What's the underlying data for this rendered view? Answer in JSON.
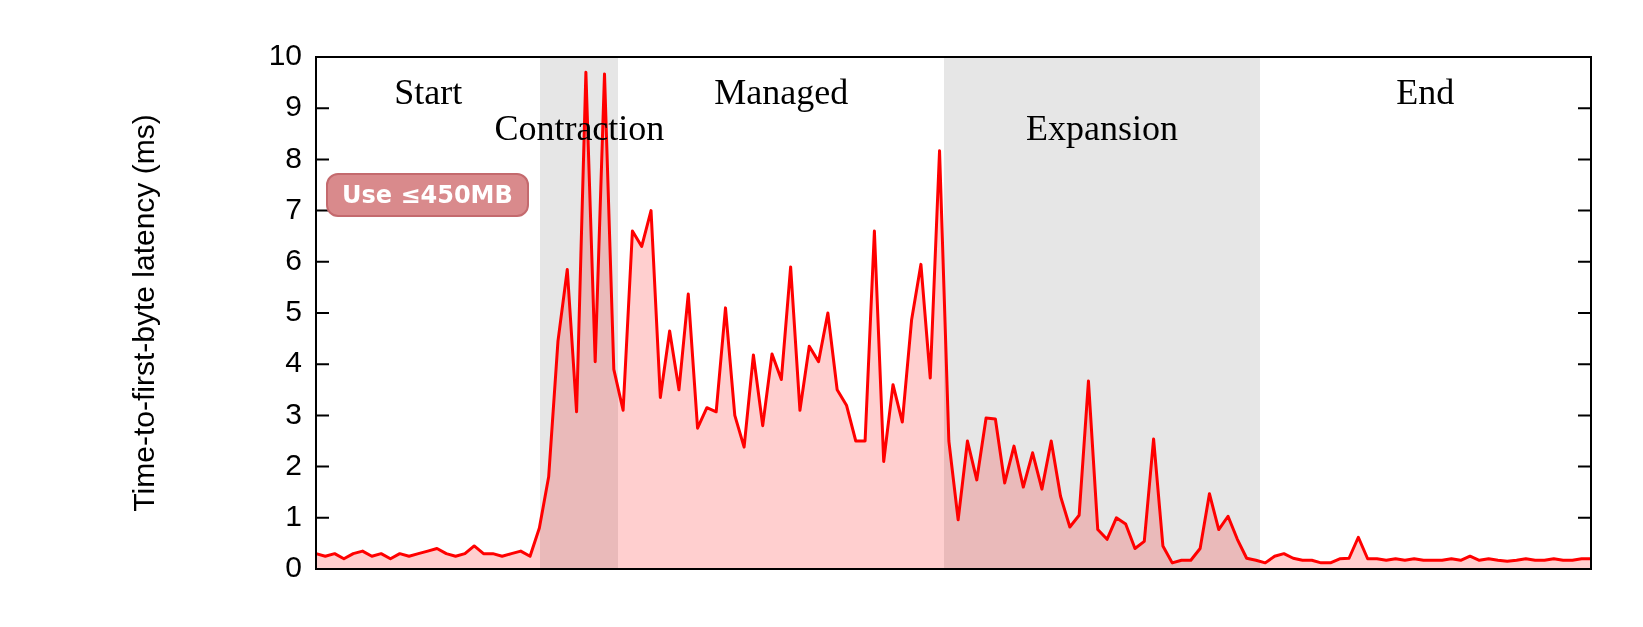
{
  "chart_data": {
    "type": "area",
    "ylabel": "Time-to-first-byte latency (ms)",
    "categories": [
      null,
      null,
      null,
      null,
      null,
      null,
      null,
      null,
      null,
      null,
      null,
      null,
      null,
      null,
      null,
      null,
      null,
      null,
      null,
      null,
      null,
      null,
      null,
      null,
      null,
      null,
      null,
      null,
      null,
      null,
      null,
      null,
      null,
      null,
      null,
      null,
      null,
      null,
      null,
      null,
      null,
      null,
      null,
      null,
      null,
      null,
      null,
      null,
      null,
      null,
      null,
      null,
      null,
      null,
      null,
      null,
      null,
      null,
      null,
      null,
      null,
      null,
      null,
      null,
      null,
      null,
      null,
      null,
      null,
      null,
      null,
      null,
      null,
      null,
      null,
      null,
      null,
      null,
      null,
      null,
      null,
      null,
      null,
      null,
      null,
      null,
      null,
      null,
      null,
      null,
      null,
      null,
      null,
      null,
      null,
      null,
      null,
      null,
      null,
      null,
      null,
      null,
      null,
      null,
      null,
      null,
      null,
      null,
      null,
      null,
      null,
      null,
      null,
      null,
      null,
      null,
      null,
      null,
      null,
      null,
      null,
      null,
      null,
      null,
      null,
      null,
      null,
      null,
      null,
      null,
      null,
      null,
      null,
      null,
      null,
      null,
      null,
      null
    ],
    "series": [
      {
        "color": "#ff0000",
        "values": [
          0.3,
          0.25,
          0.3,
          0.2,
          0.3,
          0.35,
          0.25,
          0.3,
          0.2,
          0.3,
          0.25,
          0.3,
          0.35,
          0.4,
          0.3,
          0.25,
          0.3,
          0.45,
          0.3,
          0.3,
          0.25,
          0.3,
          0.35,
          0.25,
          0.8,
          1.8,
          4.45,
          5.85,
          3.07,
          9.7,
          4.05,
          9.67,
          3.9,
          3.1,
          6.6,
          6.3,
          7.0,
          3.35,
          4.65,
          3.5,
          5.37,
          2.75,
          3.15,
          3.07,
          5.1,
          3.0,
          2.38,
          4.18,
          2.8,
          4.2,
          3.7,
          5.9,
          3.1,
          4.35,
          4.05,
          5.0,
          3.5,
          3.2,
          2.5,
          2.5,
          6.6,
          2.1,
          3.6,
          2.87,
          4.87,
          5.95,
          3.73,
          8.17,
          2.5,
          0.96,
          2.5,
          1.74,
          2.95,
          2.93,
          1.68,
          2.4,
          1.6,
          2.27,
          1.56,
          2.5,
          1.42,
          0.82,
          1.05,
          3.67,
          0.77,
          0.58,
          1.0,
          0.88,
          0.4,
          0.54,
          2.54,
          0.45,
          0.12,
          0.17,
          0.17,
          0.4,
          1.47,
          0.77,
          1.03,
          0.58,
          0.21,
          0.17,
          0.12,
          0.25,
          0.3,
          0.21,
          0.17,
          0.17,
          0.12,
          0.12,
          0.2,
          0.21,
          0.62,
          0.2,
          0.2,
          0.17,
          0.2,
          0.17,
          0.2,
          0.17,
          0.17,
          0.17,
          0.2,
          0.17,
          0.25,
          0.17,
          0.2,
          0.17,
          0.15,
          0.17,
          0.2,
          0.17,
          0.17,
          0.2,
          0.17,
          0.17,
          0.2,
          0.2
        ]
      }
    ],
    "ylim": [
      0,
      10
    ],
    "yticks": [
      0,
      1,
      2,
      3,
      4,
      5,
      6,
      7,
      8,
      9,
      10
    ],
    "annotations": [
      "Start",
      "Contraction",
      "Managed",
      "Expansion",
      "End",
      "Use ≤450MB"
    ]
  }
}
